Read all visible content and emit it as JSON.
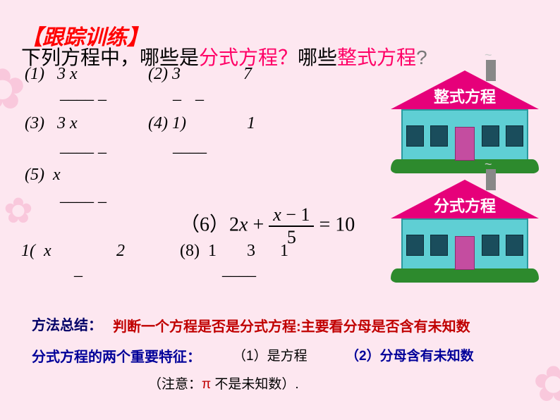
{
  "title": "【跟踪训练】",
  "question": {
    "p1": "下列方程中，哪些是",
    "p2": "分式方程？",
    "p3": "哪些",
    "p4": "整式方程",
    "p5": "?"
  },
  "equations": {
    "e1": "(1)",
    "e1x": "3 x",
    "e1u": "____    _",
    "e2": "(2)",
    "e2x": "3",
    "e2u": "__",
    "e2c": "7",
    "e3": "(3)",
    "e3x": "3 x",
    "e3u": "____    _",
    "e4": "(4)",
    "e4x": "1)",
    "e4u": "____",
    "e4c": "1",
    "e5": "(5)",
    "e5x": "x",
    "e5u": "____    _",
    "e6_pre": "（6）2",
    "e6_x": "x",
    "e6_plus": " + ",
    "e6_num_a": "x",
    "e6_num_b": " − 1",
    "e6_den": "5",
    "e6_eq": " = 10",
    "e7a": "1(",
    "e7b": "x",
    "e7u": "_",
    "e7c": "2",
    "e8": "(8)",
    "e8b": "1",
    "e8u": "____",
    "e8c": "31"
  },
  "houses": {
    "h1": "整式方程",
    "h2": "分式方程"
  },
  "summary": {
    "method": "方法总结：",
    "method_red": "判断一个方程是否是分式方程:主要看分母是否含有未知数",
    "feature": "分式方程的两个重要特征：",
    "f1": "（1）是方程",
    "f2": "（2）分母含有未知数",
    "note_a": "（注意：",
    "note_pi": "π",
    "note_b": " 不是未知数）."
  },
  "colors": {
    "background": "#fde7f0",
    "title_red": "#ff0000",
    "accent_red": "#ff0066",
    "roof_magenta": "#e6007a",
    "house_teal": "#5fcfd4",
    "bush_green": "#2d8a2d",
    "summary_blue": "#000099",
    "summary_darkred": "#c00000"
  }
}
